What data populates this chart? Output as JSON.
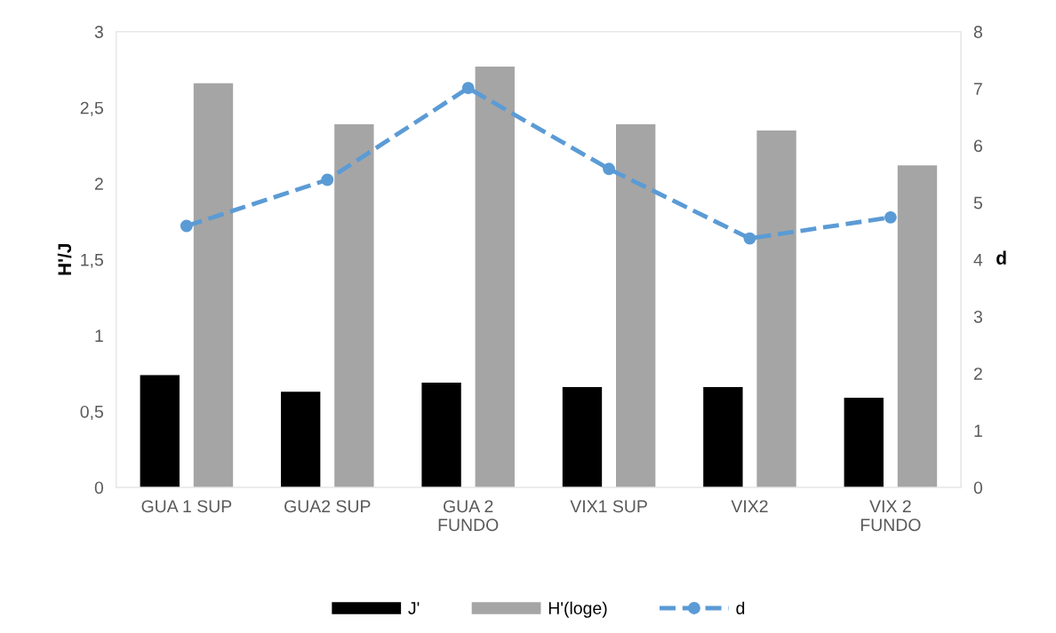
{
  "chart_data": {
    "type": "bar",
    "ylabel": "H'/J",
    "y2label": "d",
    "categories": [
      "GUA 1 SUP",
      "GUA2 SUP",
      "GUA 2\nFUNDO",
      "VIX1 SUP",
      "VIX2",
      "VIX 2\nFUNDO"
    ],
    "series": [
      {
        "name": "J'",
        "color": "#000000",
        "values": [
          0.74,
          0.63,
          0.69,
          0.66,
          0.66,
          0.59
        ]
      },
      {
        "name": "H'(loge)",
        "color": "#a5a5a5",
        "values": [
          2.66,
          2.39,
          2.77,
          2.39,
          2.35,
          2.12
        ]
      },
      {
        "name": "d",
        "type": "line",
        "axis": "y2",
        "color": "#5b9bd5",
        "marker": "circle",
        "line_style": "dashed",
        "values": [
          4.59,
          5.4,
          7.01,
          5.59,
          4.37,
          4.74
        ]
      }
    ],
    "ylim": [
      0,
      3
    ],
    "yticks": [
      0,
      {
        "value": 0.5,
        "label": "0,5"
      },
      1,
      {
        "value": 1.5,
        "label": "1,5"
      },
      2,
      {
        "value": 2.5,
        "label": "2,5"
      },
      3
    ],
    "y2lim": [
      0,
      8
    ],
    "y2ticks": [
      0,
      1,
      2,
      3,
      4,
      5,
      6,
      7,
      8
    ],
    "grid": false,
    "legend": "bottom"
  }
}
